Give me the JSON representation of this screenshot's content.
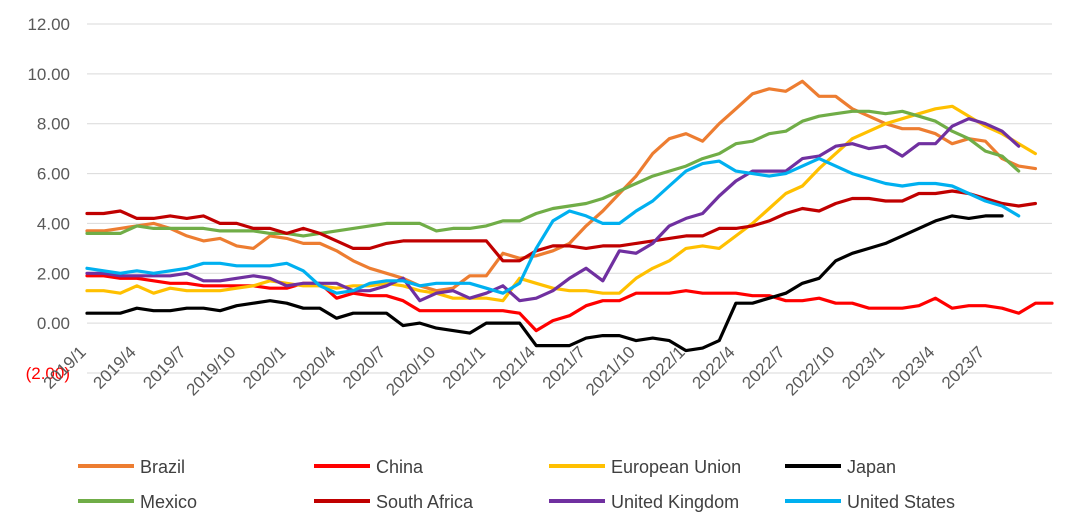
{
  "chart_data": {
    "type": "line",
    "title": "",
    "xlabel": "",
    "ylabel": "",
    "ylim": [
      -2,
      12
    ],
    "y_ticks": [
      -2,
      0,
      2,
      4,
      6,
      8,
      10,
      12
    ],
    "y_tick_labels": [
      "(2.00)",
      "0.00",
      "2.00",
      "4.00",
      "6.00",
      "8.00",
      "10.00",
      "12.00"
    ],
    "x_tick_labels": [
      "2019/1",
      "2019/4",
      "2019/7",
      "2019/10",
      "2020/1",
      "2020/4",
      "2020/7",
      "2020/10",
      "2021/1",
      "2021/4",
      "2021/7",
      "2021/10",
      "2022/1",
      "2022/4",
      "2022/7",
      "2022/10",
      "2023/1",
      "2023/4",
      "2023/7"
    ],
    "x_tick_every": 3,
    "grid": true,
    "legend_position": "bottom",
    "series": [
      {
        "name": "Brazil",
        "color": "#ed7d31",
        "values": [
          3.7,
          3.7,
          3.8,
          3.9,
          4.0,
          3.8,
          3.5,
          3.3,
          3.4,
          3.1,
          3.0,
          3.5,
          3.4,
          3.2,
          3.2,
          2.9,
          2.5,
          2.2,
          2.0,
          1.8,
          1.5,
          1.3,
          1.4,
          1.9,
          1.9,
          2.8,
          2.6,
          2.7,
          2.9,
          3.2,
          3.9,
          4.5,
          5.2,
          5.9,
          6.8,
          7.4,
          7.6,
          7.3,
          8.0,
          8.6,
          9.2,
          9.4,
          9.3,
          9.7,
          9.1,
          9.1,
          8.6,
          8.3,
          8.0,
          7.8,
          7.8,
          7.6,
          7.2,
          7.4,
          7.3,
          6.6,
          6.3,
          6.2
        ]
      },
      {
        "name": "China",
        "color": "#ff0000",
        "values": [
          1.9,
          1.9,
          1.8,
          1.8,
          1.7,
          1.6,
          1.6,
          1.5,
          1.5,
          1.5,
          1.5,
          1.4,
          1.4,
          1.6,
          1.6,
          1.0,
          1.2,
          1.1,
          1.1,
          0.9,
          0.5,
          0.5,
          0.5,
          0.5,
          0.5,
          0.5,
          0.4,
          -0.3,
          0.1,
          0.3,
          0.7,
          0.9,
          0.9,
          1.2,
          1.2,
          1.2,
          1.3,
          1.2,
          1.2,
          1.2,
          1.1,
          1.1,
          0.9,
          0.9,
          1.0,
          0.8,
          0.8,
          0.6,
          0.6,
          0.6,
          0.7,
          1.0,
          0.6,
          0.7,
          0.7,
          0.6,
          0.4,
          0.8,
          0.8
        ]
      },
      {
        "name": "European Union",
        "color": "#ffc000",
        "values": [
          1.3,
          1.3,
          1.2,
          1.5,
          1.2,
          1.4,
          1.3,
          1.3,
          1.3,
          1.4,
          1.5,
          1.7,
          1.6,
          1.5,
          1.5,
          1.4,
          1.5,
          1.5,
          1.6,
          1.5,
          1.3,
          1.2,
          1.0,
          1.0,
          1.0,
          0.9,
          1.8,
          1.6,
          1.4,
          1.3,
          1.3,
          1.2,
          1.2,
          1.8,
          2.2,
          2.5,
          3.0,
          3.1,
          3.0,
          3.5,
          4.0,
          4.6,
          5.2,
          5.5,
          6.2,
          6.8,
          7.4,
          7.7,
          8.0,
          8.2,
          8.4,
          8.6,
          8.7,
          8.3,
          7.9,
          7.6,
          7.2,
          6.8
        ]
      },
      {
        "name": "Japan",
        "color": "#000000",
        "values": [
          0.4,
          0.4,
          0.4,
          0.6,
          0.5,
          0.5,
          0.6,
          0.6,
          0.5,
          0.7,
          0.8,
          0.9,
          0.8,
          0.6,
          0.6,
          0.2,
          0.4,
          0.4,
          0.4,
          -0.1,
          0.0,
          -0.2,
          -0.3,
          -0.4,
          0.0,
          0.0,
          0.0,
          -0.9,
          -0.9,
          -0.9,
          -0.6,
          -0.5,
          -0.5,
          -0.7,
          -0.6,
          -0.7,
          -1.1,
          -1.0,
          -0.7,
          0.8,
          0.8,
          1.0,
          1.2,
          1.6,
          1.8,
          2.5,
          2.8,
          3.0,
          3.2,
          3.5,
          3.8,
          4.1,
          4.3,
          4.2,
          4.3,
          4.3
        ]
      },
      {
        "name": "Mexico",
        "color": "#70ad47",
        "values": [
          3.6,
          3.6,
          3.6,
          3.9,
          3.8,
          3.8,
          3.8,
          3.8,
          3.7,
          3.7,
          3.7,
          3.6,
          3.6,
          3.5,
          3.6,
          3.7,
          3.8,
          3.9,
          4.0,
          4.0,
          4.0,
          3.7,
          3.8,
          3.8,
          3.9,
          4.1,
          4.1,
          4.4,
          4.6,
          4.7,
          4.8,
          5.0,
          5.3,
          5.6,
          5.9,
          6.1,
          6.3,
          6.6,
          6.8,
          7.2,
          7.3,
          7.6,
          7.7,
          8.1,
          8.3,
          8.4,
          8.5,
          8.5,
          8.4,
          8.5,
          8.3,
          8.1,
          7.7,
          7.4,
          6.9,
          6.7,
          6.1
        ]
      },
      {
        "name": "South Africa",
        "color": "#c00000",
        "values": [
          4.4,
          4.4,
          4.5,
          4.2,
          4.2,
          4.3,
          4.2,
          4.3,
          4.0,
          4.0,
          3.8,
          3.8,
          3.6,
          3.8,
          3.6,
          3.3,
          3.0,
          3.0,
          3.2,
          3.3,
          3.3,
          3.3,
          3.3,
          3.3,
          3.3,
          2.5,
          2.5,
          2.9,
          3.1,
          3.1,
          3.0,
          3.1,
          3.1,
          3.2,
          3.3,
          3.4,
          3.5,
          3.5,
          3.8,
          3.8,
          3.9,
          4.1,
          4.4,
          4.6,
          4.5,
          4.8,
          5.0,
          5.0,
          4.9,
          4.9,
          5.2,
          5.2,
          5.3,
          5.2,
          5.0,
          4.8,
          4.7,
          4.8
        ]
      },
      {
        "name": "United Kingdom",
        "color": "#7030a0",
        "values": [
          2.0,
          2.0,
          1.9,
          1.9,
          1.9,
          1.9,
          2.0,
          1.7,
          1.7,
          1.8,
          1.9,
          1.8,
          1.5,
          1.6,
          1.6,
          1.6,
          1.3,
          1.3,
          1.5,
          1.8,
          0.9,
          1.2,
          1.3,
          1.0,
          1.2,
          1.5,
          0.9,
          1.0,
          1.3,
          1.8,
          2.2,
          1.7,
          2.9,
          2.8,
          3.2,
          3.9,
          4.2,
          4.4,
          5.1,
          5.7,
          6.1,
          6.1,
          6.1,
          6.6,
          6.7,
          7.1,
          7.2,
          7.0,
          7.1,
          6.7,
          7.2,
          7.2,
          7.9,
          8.2,
          8.0,
          7.7,
          7.1
        ]
      },
      {
        "name": "United States",
        "color": "#00b0f0",
        "values": [
          2.2,
          2.1,
          2.0,
          2.1,
          2.0,
          2.1,
          2.2,
          2.4,
          2.4,
          2.3,
          2.3,
          2.3,
          2.4,
          2.1,
          1.5,
          1.2,
          1.3,
          1.6,
          1.7,
          1.7,
          1.5,
          1.6,
          1.6,
          1.6,
          1.4,
          1.2,
          1.6,
          3.0,
          4.1,
          4.5,
          4.3,
          4.0,
          4.0,
          4.5,
          4.9,
          5.5,
          6.1,
          6.4,
          6.5,
          6.1,
          6.0,
          5.9,
          6.0,
          6.3,
          6.6,
          6.3,
          6.0,
          5.8,
          5.6,
          5.5,
          5.6,
          5.6,
          5.5,
          5.2,
          4.9,
          4.7,
          4.3
        ]
      }
    ]
  }
}
